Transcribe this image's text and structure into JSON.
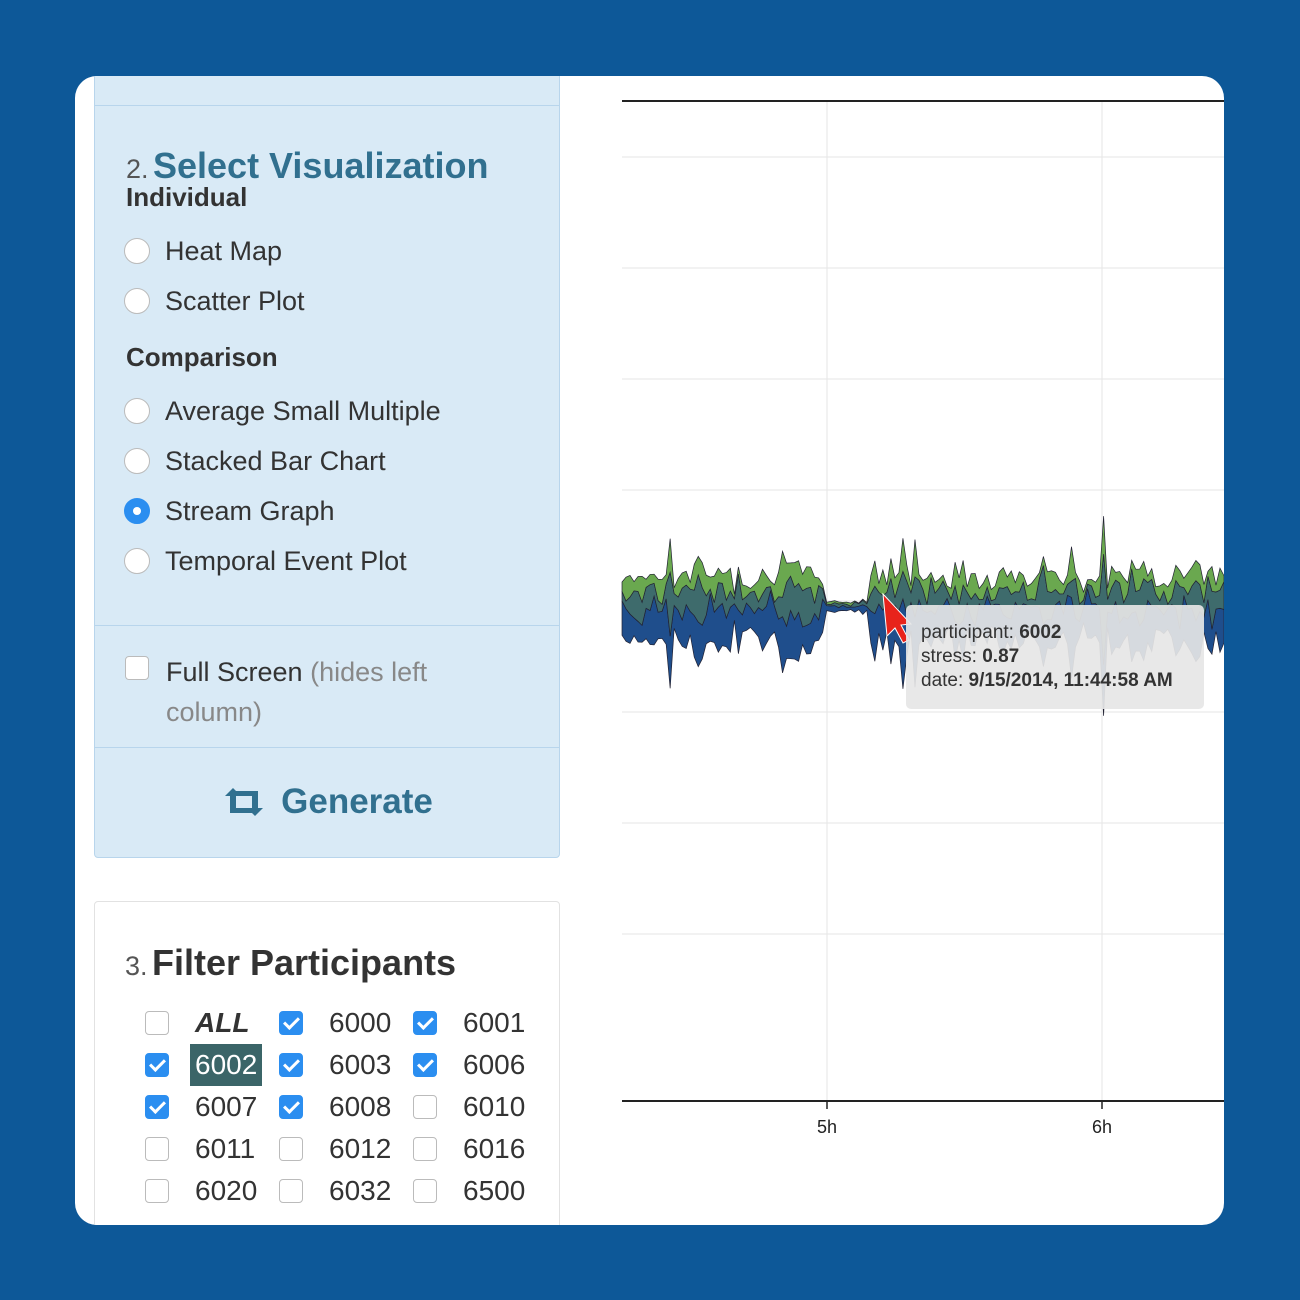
{
  "visualization": {
    "step_number": "2.",
    "title": "Select Visualization",
    "groups": [
      {
        "label": "Individual",
        "options": [
          {
            "label": "Heat Map",
            "selected": false
          },
          {
            "label": "Scatter Plot",
            "selected": false
          }
        ]
      },
      {
        "label": "Comparison",
        "options": [
          {
            "label": "Average Small Multiple",
            "selected": false
          },
          {
            "label": "Stacked Bar Chart",
            "selected": false
          },
          {
            "label": "Stream Graph",
            "selected": true
          },
          {
            "label": "Temporal Event Plot",
            "selected": false
          }
        ]
      }
    ],
    "full_screen": {
      "label": "Full Screen",
      "hint": "(hides left column)",
      "checked": false
    },
    "generate_label": "Generate"
  },
  "filter": {
    "step_number": "3.",
    "title": "Filter Participants",
    "participants": [
      {
        "label": "ALL",
        "checked": false,
        "all": true
      },
      {
        "label": "6000",
        "checked": true
      },
      {
        "label": "6001",
        "checked": true
      },
      {
        "label": "6002",
        "checked": true,
        "highlighted": true
      },
      {
        "label": "6003",
        "checked": true
      },
      {
        "label": "6006",
        "checked": true
      },
      {
        "label": "6007",
        "checked": true
      },
      {
        "label": "6008",
        "checked": true
      },
      {
        "label": "6010",
        "checked": false
      },
      {
        "label": "6011",
        "checked": false
      },
      {
        "label": "6012",
        "checked": false
      },
      {
        "label": "6016",
        "checked": false
      },
      {
        "label": "6020",
        "checked": false
      },
      {
        "label": "6032",
        "checked": false
      },
      {
        "label": "6500",
        "checked": false
      }
    ]
  },
  "chart_data": {
    "type": "area",
    "subtype": "streamgraph",
    "title": "",
    "xlabel": "",
    "ylabel": "",
    "x_ticks": [
      "5h",
      "6h"
    ],
    "grid": true,
    "colors": {
      "bottom": "#1f4e8c",
      "middle": "#3e6b6c",
      "top": "#6aa84f"
    },
    "tooltip": {
      "participant_label": "participant:",
      "participant": "6002",
      "stress_label": "stress:",
      "stress": "0.87",
      "date_label": "date:",
      "date": "9/15/2014, 11:44:58 AM"
    }
  }
}
